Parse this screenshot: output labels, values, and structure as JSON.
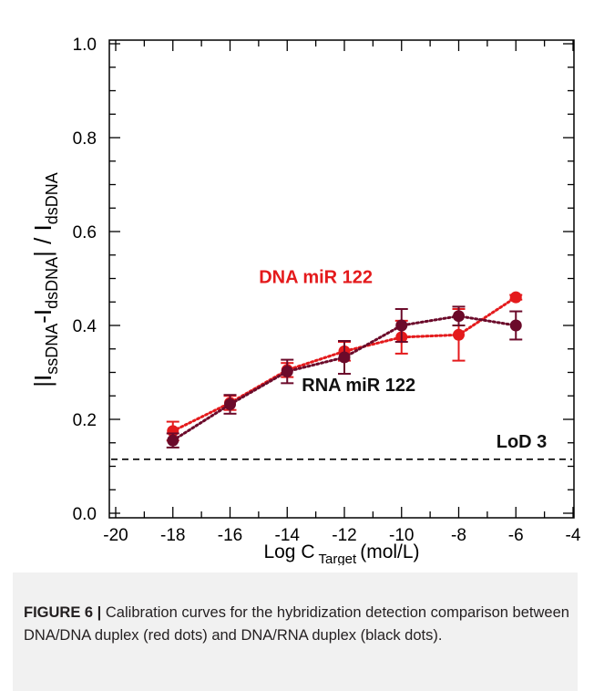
{
  "chart_data": {
    "type": "scatter",
    "xlabel": "Log C",
    "xlabel_sub": "Target",
    "xlabel_unit": "(mol/L)",
    "ylabel_parts": [
      "|I",
      "ssDNA",
      "-I",
      "dsDNA",
      "| / I",
      "dsDNA"
    ],
    "xlim": [
      -20,
      -4
    ],
    "ylim": [
      0.0,
      1.0
    ],
    "x_ticks": [
      -20,
      -18,
      -16,
      -14,
      -12,
      -10,
      -8,
      -6,
      -4
    ],
    "x_tick_labels": [
      "-20",
      "-18",
      "-16",
      "-14",
      "-12",
      "-10",
      "-8",
      "-6",
      "-4"
    ],
    "y_ticks": [
      0.0,
      0.2,
      0.4,
      0.6,
      0.8,
      1.0
    ],
    "y_tick_labels": [
      "0.0",
      "0.2",
      "0.4",
      "0.6",
      "0.8",
      "1.0"
    ],
    "grid": false,
    "series": [
      {
        "name": "DNA miR 122",
        "color": "#e41a1c",
        "x": [
          -18,
          -16,
          -14,
          -12,
          -10,
          -8,
          -6
        ],
        "y": [
          0.175,
          0.235,
          0.305,
          0.345,
          0.375,
          0.38,
          0.46
        ],
        "err": [
          0.02,
          0.015,
          0.015,
          0.02,
          0.035,
          0.055,
          0.005
        ]
      },
      {
        "name": "RNA miR 122",
        "color": "#6b0a2a",
        "x": [
          -18,
          -16,
          -14,
          -12,
          -10,
          -8,
          -6
        ],
        "y": [
          0.155,
          0.232,
          0.302,
          0.332,
          0.4,
          0.42,
          0.4
        ],
        "err": [
          0.015,
          0.02,
          0.025,
          0.035,
          0.035,
          0.02,
          0.03
        ]
      }
    ],
    "lod": {
      "label": "LoD 3",
      "value": 0.115
    },
    "annotations": [
      {
        "text": "DNA miR 122",
        "color": "#e41a1c",
        "x": -13.0,
        "y": 0.49
      },
      {
        "text": "RNA miR 122",
        "color": "#111111",
        "x": -11.5,
        "y": 0.26
      },
      {
        "text": "LoD 3",
        "color": "#111111",
        "x": -5.8,
        "y": 0.14
      }
    ]
  },
  "caption": {
    "label": "FIGURE 6 |",
    "text": "Calibration curves for the hybridization detection comparison between DNA/DNA duplex (red dots) and DNA/RNA duplex (black dots)."
  }
}
